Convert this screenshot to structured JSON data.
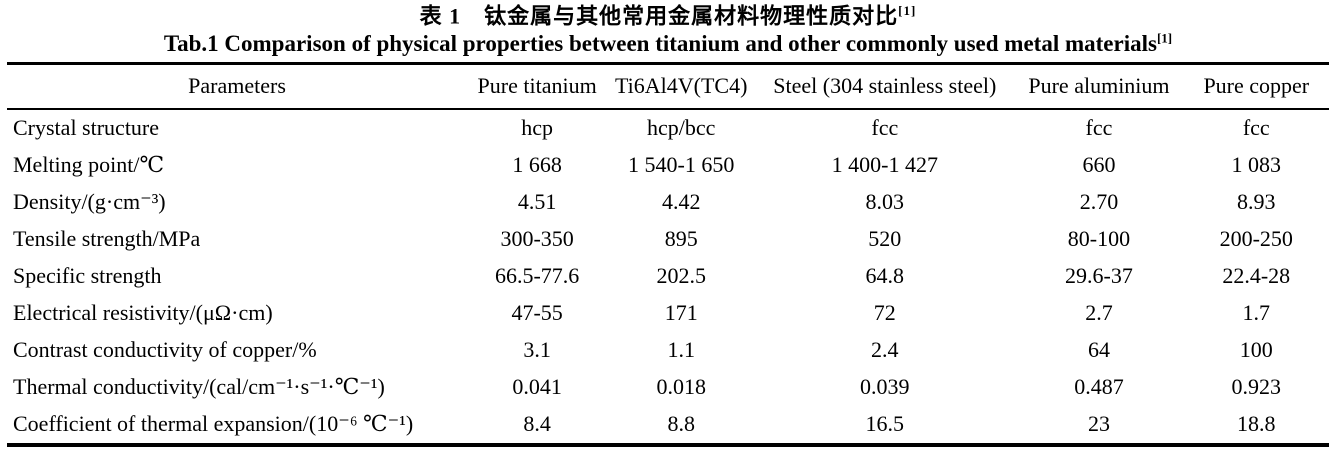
{
  "title": {
    "zh": "表 1　钛金属与其他常用金属材料物理性质对比",
    "zh_ref": "[1]",
    "en": "Tab.1 Comparison of physical properties between titanium and other commonly used metal materials",
    "en_ref": "[1]"
  },
  "chart_data": {
    "type": "table",
    "columns": [
      "Parameters",
      "Pure titanium",
      "Ti6Al4V(TC4)",
      "Steel (304 stainless steel)",
      "Pure aluminium",
      "Pure copper"
    ],
    "rows": [
      [
        "Crystal structure",
        "hcp",
        "hcp/bcc",
        "fcc",
        "fcc",
        "fcc"
      ],
      [
        "Melting point/℃",
        "1 668",
        "1 540-1 650",
        "1 400-1 427",
        "660",
        "1 083"
      ],
      [
        "Density/(g·cm⁻³)",
        "4.51",
        "4.42",
        "8.03",
        "2.70",
        "8.93"
      ],
      [
        "Tensile strength/MPa",
        "300-350",
        "895",
        "520",
        "80-100",
        "200-250"
      ],
      [
        "Specific strength",
        "66.5-77.6",
        "202.5",
        "64.8",
        "29.6-37",
        "22.4-28"
      ],
      [
        "Electrical resistivity/(μΩ·cm)",
        "47-55",
        "171",
        "72",
        "2.7",
        "1.7"
      ],
      [
        "Contrast conductivity of copper/%",
        "3.1",
        "1.1",
        "2.4",
        "64",
        "100"
      ],
      [
        "Thermal conductivity/(cal/cm⁻¹·s⁻¹·℃⁻¹)",
        "0.041",
        "0.018",
        "0.039",
        "0.487",
        "0.923"
      ],
      [
        "Coefficient of thermal expansion/(10⁻⁶ ℃⁻¹)",
        "8.4",
        "8.8",
        "16.5",
        "23",
        "18.8"
      ]
    ]
  }
}
